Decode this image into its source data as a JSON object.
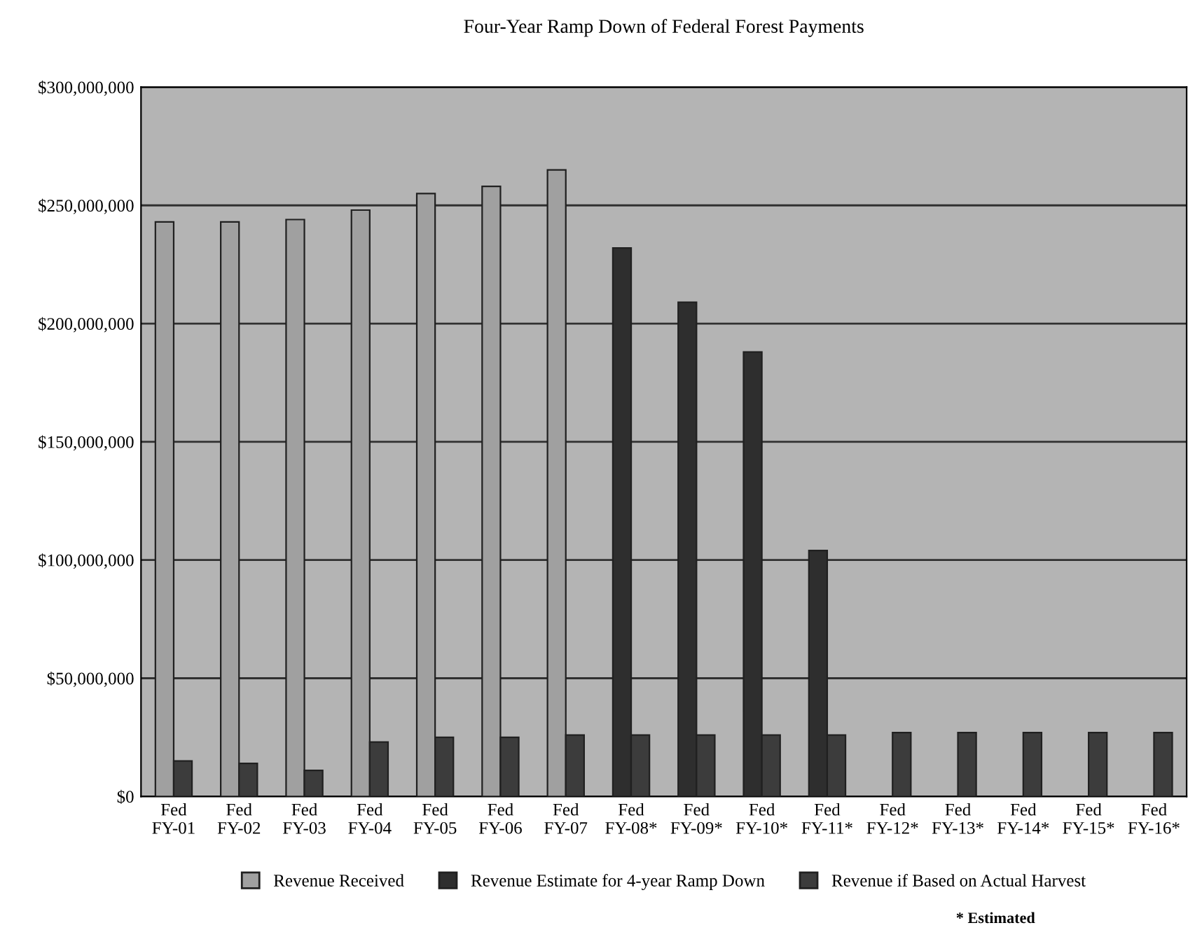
{
  "chart_data": {
    "type": "bar",
    "title": "Four-Year Ramp Down of Federal Forest Payments",
    "categories": [
      "Fed\nFY-01",
      "Fed\nFY-02",
      "Fed\nFY-03",
      "Fed\nFY-04",
      "Fed\nFY-05",
      "Fed\nFY-06",
      "Fed\nFY-07",
      "Fed\nFY-08*",
      "Fed\nFY-09*",
      "Fed\nFY-10*",
      "Fed\nFY-11*",
      "Fed\nFY-12*",
      "Fed\nFY-13*",
      "Fed\nFY-14*",
      "Fed\nFY-15*",
      "Fed\nFY-16*"
    ],
    "series": [
      {
        "name": "Revenue Received",
        "color": "#a0a0a0",
        "values": [
          243000000,
          243000000,
          244000000,
          248000000,
          255000000,
          258000000,
          265000000,
          null,
          null,
          null,
          null,
          null,
          null,
          null,
          null,
          null
        ]
      },
      {
        "name": "Revenue Estimate for 4-year Ramp Down",
        "color": "#2e2e2e",
        "values": [
          null,
          null,
          null,
          null,
          null,
          null,
          null,
          232000000,
          209000000,
          188000000,
          104000000,
          null,
          null,
          null,
          null,
          null
        ]
      },
      {
        "name": "Revenue if Based on Actual Harvest",
        "color": "#3c3c3c",
        "values": [
          15000000,
          14000000,
          11000000,
          23000000,
          25000000,
          25000000,
          26000000,
          26000000,
          26000000,
          26000000,
          26000000,
          27000000,
          27000000,
          27000000,
          27000000,
          27000000
        ]
      }
    ],
    "ylim": [
      0,
      300000000
    ],
    "yticks": [
      {
        "value": 0,
        "label": "$0"
      },
      {
        "value": 50000000,
        "label": "$50,000,000"
      },
      {
        "value": 100000000,
        "label": "$100,000,000"
      },
      {
        "value": 150000000,
        "label": "$150,000,000"
      },
      {
        "value": 200000000,
        "label": "$200,000,000"
      },
      {
        "value": 250000000,
        "label": "$250,000,000"
      },
      {
        "value": 300000000,
        "label": "$300,000,000"
      }
    ],
    "grid": "y",
    "legend": "bottom",
    "annotations": [
      "* Estimated"
    ]
  }
}
